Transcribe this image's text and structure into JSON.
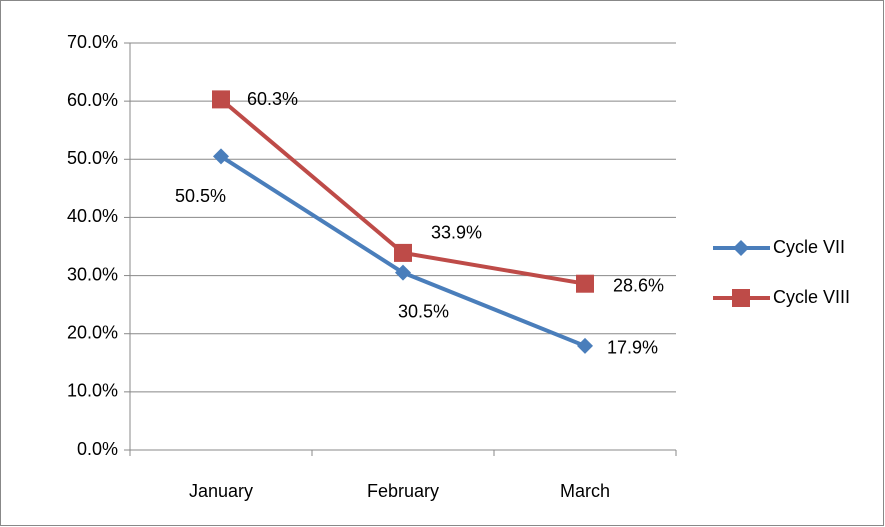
{
  "chart_data": {
    "type": "line",
    "categories": [
      "January",
      "February",
      "March"
    ],
    "series": [
      {
        "name": "Cycle VII",
        "color": "#4a7ebb",
        "marker": "diamond",
        "values": [
          50.5,
          30.5,
          17.9
        ],
        "value_labels": [
          "50.5%",
          "30.5%",
          "17.9%"
        ]
      },
      {
        "name": "Cycle VIII",
        "color": "#be4b48",
        "marker": "square",
        "values": [
          60.3,
          33.9,
          28.6
        ],
        "value_labels": [
          "60.3%",
          "33.9%",
          "28.6%"
        ]
      }
    ],
    "ylim": [
      0,
      70
    ],
    "yticks": [
      {
        "value": 0,
        "label": "0.0%"
      },
      {
        "value": 10,
        "label": "10.0%"
      },
      {
        "value": 20,
        "label": "20.0%"
      },
      {
        "value": 30,
        "label": "30.0%"
      },
      {
        "value": 40,
        "label": "40.0%"
      },
      {
        "value": 50,
        "label": "50.0%"
      },
      {
        "value": 60,
        "label": "60.0%"
      },
      {
        "value": 70,
        "label": "70.0%"
      }
    ],
    "grid": true,
    "legend": "right"
  }
}
